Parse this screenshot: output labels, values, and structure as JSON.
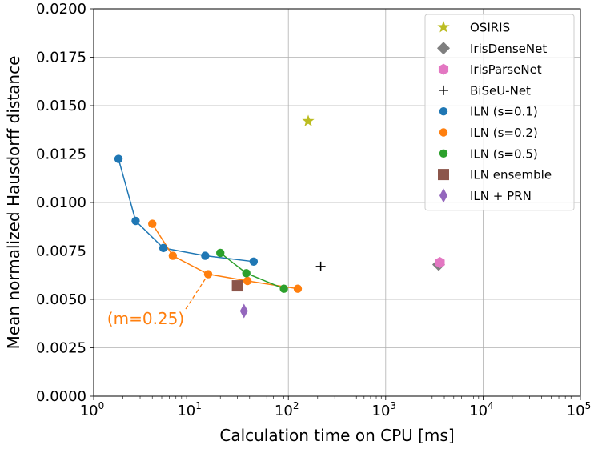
{
  "chart_data": {
    "type": "scatter",
    "xscale": "log",
    "xlim": [
      1,
      100000
    ],
    "ylim": [
      0,
      0.02
    ],
    "xlabel": "Calculation time on CPU [ms]",
    "ylabel": "Mean normalized Hausdorff distance",
    "grid": true,
    "legend_position": "top-right",
    "xticks": [
      {
        "value": 1,
        "base": "10",
        "exp": "0"
      },
      {
        "value": 10,
        "base": "10",
        "exp": "1"
      },
      {
        "value": 100,
        "base": "10",
        "exp": "2"
      },
      {
        "value": 1000,
        "base": "10",
        "exp": "3"
      },
      {
        "value": 10000,
        "base": "10",
        "exp": "4"
      },
      {
        "value": 100000,
        "base": "10",
        "exp": "5"
      }
    ],
    "yticks": [
      "0.0000",
      "0.0025",
      "0.0050",
      "0.0075",
      "0.0100",
      "0.0125",
      "0.0150",
      "0.0175",
      "0.0200"
    ],
    "series": [
      {
        "name": "OSIRIS",
        "marker": "star",
        "color": "#bcbd22",
        "connected": false,
        "x": [
          160
        ],
        "y": [
          0.0142
        ]
      },
      {
        "name": "IrisDenseNet",
        "marker": "diamond",
        "color": "#7f7f7f",
        "connected": false,
        "x": [
          3500
        ],
        "y": [
          0.0068
        ]
      },
      {
        "name": "IrisParseNet",
        "marker": "hexagon",
        "color": "#e377c2",
        "connected": false,
        "x": [
          3600
        ],
        "y": [
          0.0069
        ]
      },
      {
        "name": "BiSeU-Net",
        "marker": "plus",
        "color": "#000000",
        "connected": false,
        "x": [
          215
        ],
        "y": [
          0.0067
        ]
      },
      {
        "name": "ILN (s=0.1)",
        "marker": "circle",
        "color": "#1f77b4",
        "connected": true,
        "x": [
          1.8,
          2.7,
          5.2,
          14,
          44
        ],
        "y": [
          0.01225,
          0.00905,
          0.00765,
          0.00725,
          0.00695
        ]
      },
      {
        "name": "ILN (s=0.2)",
        "marker": "circle",
        "color": "#ff7f0e",
        "connected": true,
        "x": [
          4,
          6.5,
          15,
          38,
          125
        ],
        "y": [
          0.0089,
          0.00725,
          0.0063,
          0.00595,
          0.00555
        ]
      },
      {
        "name": "ILN (s=0.5)",
        "marker": "circle",
        "color": "#2ca02c",
        "connected": true,
        "x": [
          20,
          37,
          90
        ],
        "y": [
          0.0074,
          0.00635,
          0.00555
        ]
      },
      {
        "name": "ILN ensemble",
        "marker": "square",
        "color": "#8c564b",
        "connected": false,
        "x": [
          30
        ],
        "y": [
          0.0057
        ]
      },
      {
        "name": "ILN + PRN",
        "marker": "thin_diamond",
        "color": "#9467bd",
        "connected": false,
        "x": [
          35
        ],
        "y": [
          0.0044
        ]
      }
    ],
    "annotations": [
      {
        "text": "(m=0.25)",
        "color": "#ff7f0e",
        "target_series": "ILN (s=0.2)",
        "target_index": 2
      }
    ]
  }
}
